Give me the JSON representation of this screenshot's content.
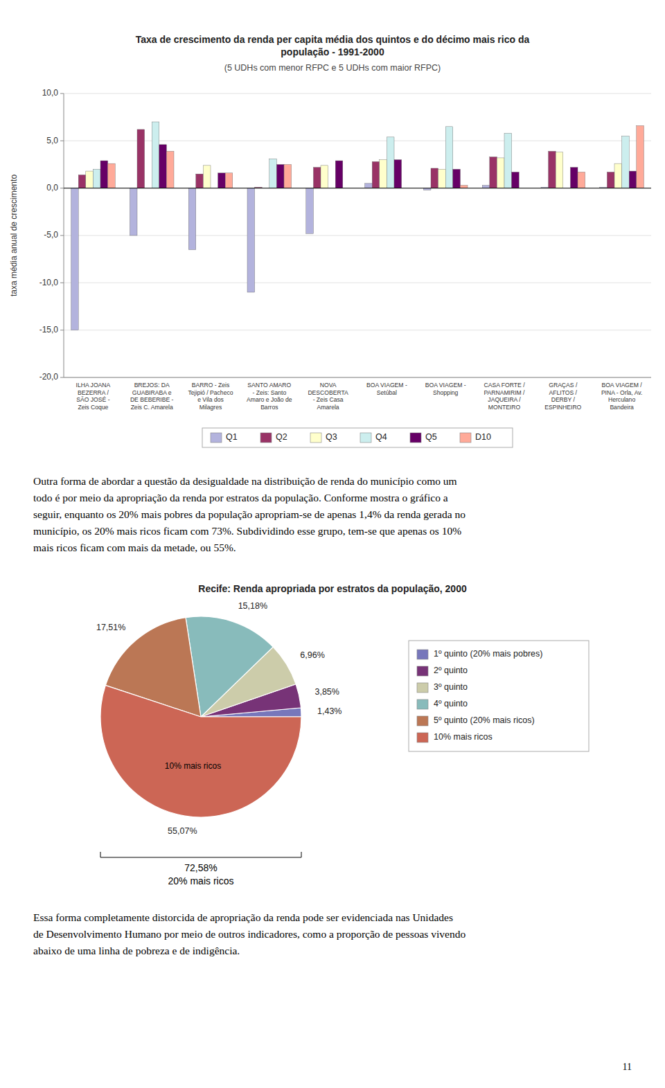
{
  "chart_data": [
    {
      "type": "bar",
      "title": "Taxa de crescimento da renda per capita média dos quintos e do décimo mais rico da\npopulação - 1991-2000",
      "subtitle": "(5 UDHs com menor RFPC e 5 UDHs com maior RFPC)",
      "y_label": "taxa média anual de crescimento",
      "categories": [
        "ILHA JOANA\nBEZERRA /\nSÃO JOSÉ -\nZeis Coque",
        "BREJOS: DA\nGUABIRABA e\nDE BEBERIBE -\nZeis C. Amarela",
        "BARRO - Zeis\nTejipió / Pacheco\ne Vila dos\nMilagres",
        "SANTO AMARO\n- Zeis: Santo\nAmaro e João de\nBarros",
        "NOVA\nDESCOBERTA\n- Zeis Casa\nAmarela",
        "BOA VIAGEM -\nSetúbal",
        "BOA VIAGEM -\nShopping",
        "CASA FORTE /\nPARNAMIRIM /\nJAQUEIRA /\nMONTEIRO",
        "GRAÇAS /\nAFLITOS /\nDERBY /\nESPINHEIRO",
        "BOA VIAGEM /\nPINA - Orla, Av.\nHerculano\nBandeira"
      ],
      "series": [
        {
          "name": "Q1",
          "color": "#b3b3dd",
          "values": [
            -15.0,
            -5.0,
            -6.5,
            -11.0,
            -4.8,
            0.5,
            -0.2,
            0.3,
            0.1,
            0.1
          ]
        },
        {
          "name": "Q2",
          "color": "#993366",
          "values": [
            1.4,
            6.2,
            1.5,
            0.1,
            2.2,
            2.8,
            2.1,
            3.3,
            3.9,
            1.7
          ]
        },
        {
          "name": "Q3",
          "color": "#ffffcc",
          "values": [
            1.8,
            0.0,
            2.4,
            0.0,
            2.4,
            3.0,
            2.0,
            3.2,
            3.8,
            2.6
          ]
        },
        {
          "name": "Q4",
          "color": "#cceeee",
          "values": [
            2.0,
            7.0,
            0.0,
            3.1,
            0.0,
            5.4,
            6.5,
            5.8,
            0.0,
            5.5
          ]
        },
        {
          "name": "Q5",
          "color": "#660066",
          "values": [
            2.9,
            4.6,
            1.6,
            2.5,
            2.9,
            3.0,
            2.0,
            1.7,
            2.2,
            1.8
          ]
        },
        {
          "name": "D10",
          "color": "#ffaa99",
          "values": [
            2.6,
            3.9,
            1.6,
            2.5,
            0.0,
            0.0,
            0.3,
            0.0,
            1.7,
            6.6
          ]
        }
      ],
      "ylim": [
        -20.0,
        10.0
      ],
      "yticks": [
        {
          "value": 10.0,
          "label": "10,0"
        },
        {
          "value": 5.0,
          "label": "5,0"
        },
        {
          "value": 0.0,
          "label": "0,0"
        },
        {
          "value": -5.0,
          "label": "-5,0"
        },
        {
          "value": -10.0,
          "label": "-10,0"
        },
        {
          "value": -15.0,
          "label": "-15,0"
        },
        {
          "value": -20.0,
          "label": "-20,0"
        }
      ],
      "grid": true,
      "legend": "bottom",
      "annotations": [
        "Outra forma de abordar a questão da desigualdade na distribuição de renda do município como um",
        "todo é por meio da apropriação da renda por estratos da população. Conforme mostra o gráfico a",
        "seguir, enquanto os 20% mais pobres da população apropriam-se de apenas 1,4% da renda gerada no",
        "município, os 20% mais ricos ficam com 73%. Subdividindo esse grupo, tem-se que apenas os 10%",
        "mais ricos ficam com mais da metade, ou 55%."
      ]
    },
    {
      "type": "pie",
      "title": "Recife: Renda apropriada por estratos da população, 2000",
      "categories": [
        "1º quinto (20% mais pobres)",
        "2º quinto",
        "3º quinto",
        "4º quinto",
        "5º quinto (20% mais ricos)",
        "10% mais ricos"
      ],
      "values": [
        1.43,
        3.85,
        6.96,
        15.18,
        17.51,
        55.07
      ],
      "value_labels": [
        "1,43%",
        "3,85%",
        "6,96%",
        "15,18%",
        "17,51%",
        "55,07%"
      ],
      "colors": [
        "#7777bb",
        "#773377",
        "#ccccaa",
        "#88bbbb",
        "#bb7755",
        "#cc6655"
      ],
      "data_labels": true,
      "legend": "right",
      "annotations": [
        "10% mais ricos",
        "72,58%",
        "20% mais ricos",
        "Essa forma completamente distorcida de apropriação da renda pode ser evidenciada nas Unidades",
        "de Desenvolvimento Humano por meio de outros indicadores, como a proporção de pessoas vivendo",
        "abaixo de uma linha de pobreza e de indigência.",
        "11"
      ]
    }
  ]
}
